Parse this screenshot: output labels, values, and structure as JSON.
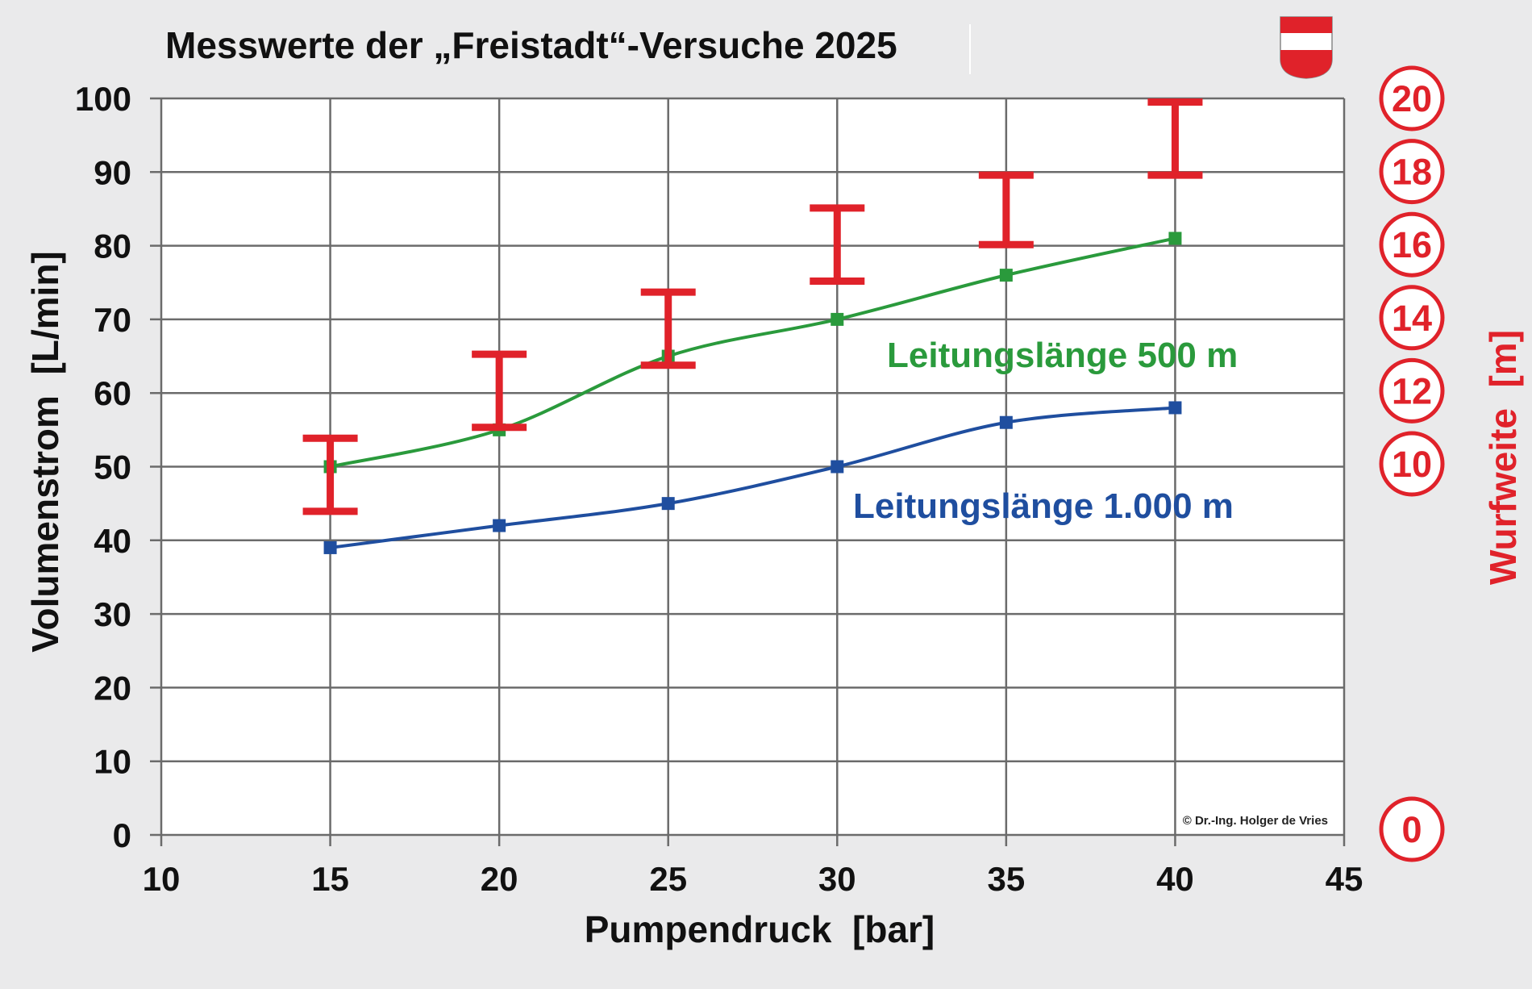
{
  "chart_data": {
    "type": "line",
    "title": "Messwerte der „Freistadt“-Versuche 2025",
    "xlabel": "Pumpendruck  [bar]",
    "ylabel": "Volumenstrom  [L/min]",
    "y2label": "Wurfweite  [m]",
    "xlim": [
      10,
      45
    ],
    "ylim": [
      0,
      100
    ],
    "y2lim": [
      0,
      20
    ],
    "x_ticks": [
      10,
      15,
      20,
      25,
      30,
      35,
      40,
      45
    ],
    "y_ticks": [
      0,
      10,
      20,
      30,
      40,
      50,
      60,
      70,
      80,
      90,
      100
    ],
    "y2_ticks": [
      0,
      10,
      12,
      14,
      16,
      18,
      20
    ],
    "grid": true,
    "copyright": "© Dr.-Ing. Holger de Vries",
    "series": [
      {
        "name": "Leitungslänge 500 m",
        "color": "#2a9a3c",
        "x": [
          15,
          20,
          25,
          30,
          35,
          40
        ],
        "values": [
          50,
          55,
          65,
          70,
          76,
          81
        ]
      },
      {
        "name": "Leitungslänge 1.000 m",
        "color": "#1f4e9f",
        "x": [
          15,
          20,
          25,
          30,
          35,
          40
        ],
        "values": [
          39,
          42,
          45,
          50,
          56,
          58
        ]
      }
    ],
    "range_series": {
      "label": "Wurfweite",
      "color": "#e0222a",
      "x": [
        15,
        20,
        25,
        30,
        35,
        40
      ],
      "low": [
        8.7,
        11.0,
        12.7,
        15.0,
        16.0,
        17.9
      ],
      "high": [
        10.7,
        13.0,
        14.7,
        17.0,
        17.9,
        19.9
      ]
    },
    "emblem": "austria-shield-icon"
  }
}
